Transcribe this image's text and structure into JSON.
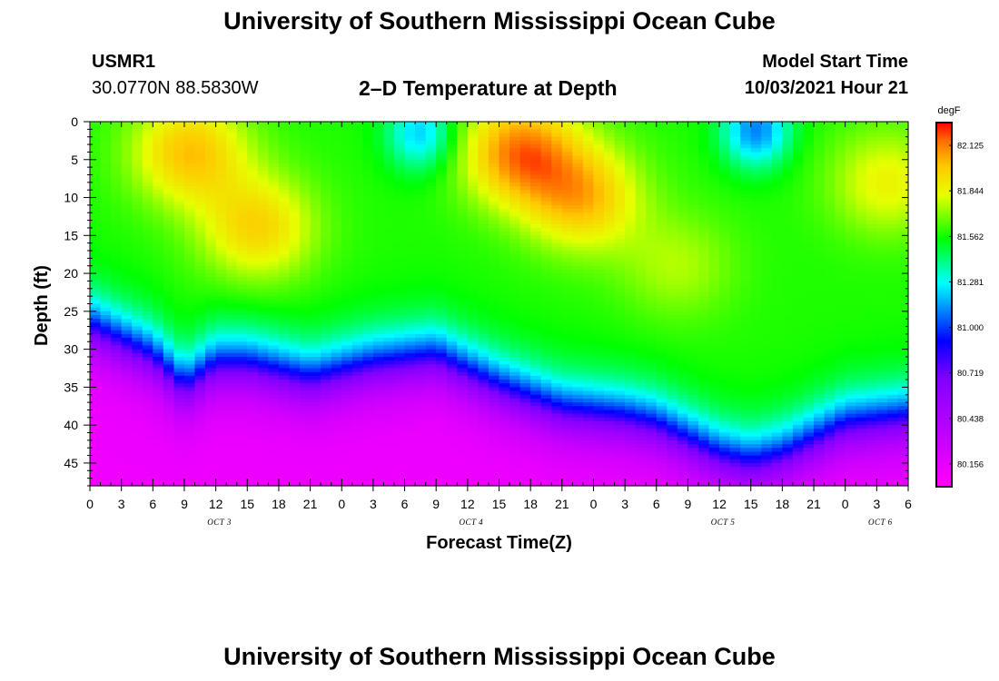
{
  "header": {
    "title": "University of Southern Mississippi Ocean Cube",
    "station_id": "USMR1",
    "coords": "30.0770N  88.5830W",
    "chart_title": "2–D Temperature at Depth",
    "start_label": "Model Start Time",
    "start_value": "10/03/2021 Hour 21"
  },
  "footer": {
    "title": "University of Southern Mississippi Ocean Cube"
  },
  "chart_data": {
    "type": "heatmap",
    "title": "2–D Temperature at Depth",
    "xlabel": "Forecast Time(Z)",
    "ylabel": "Depth (ft)",
    "x_unit": "hours since Oct 3 00Z",
    "x_range": [
      0,
      78
    ],
    "x_tick_step_hours": 3,
    "x_tick_labels": [
      "0",
      "3",
      "6",
      "9",
      "12",
      "15",
      "18",
      "21",
      "0",
      "3",
      "6",
      "9",
      "12",
      "15",
      "18",
      "21",
      "0",
      "3",
      "6",
      "9",
      "12",
      "15",
      "18",
      "21",
      "0",
      "3",
      "6"
    ],
    "date_labels": [
      {
        "text": "OCT 3",
        "hour": 12
      },
      {
        "text": "OCT 4",
        "hour": 36
      },
      {
        "text": "OCT 5",
        "hour": 60
      },
      {
        "text": "OCT 6",
        "hour": 75
      }
    ],
    "y_range": [
      0,
      48
    ],
    "y_ticks": [
      0,
      5,
      10,
      15,
      20,
      25,
      30,
      35,
      40,
      45
    ],
    "colorbar": {
      "unit": "degF",
      "min": 80.016,
      "max": 82.266,
      "labels": [
        "82.125",
        "81.844",
        "81.562",
        "81.281",
        "81.000",
        "80.719",
        "80.438",
        "80.156"
      ]
    },
    "thermocline_depth_ft": [
      {
        "hour": 0,
        "depth": 27
      },
      {
        "hour": 6,
        "depth": 31
      },
      {
        "hour": 9,
        "depth": 35
      },
      {
        "hour": 12,
        "depth": 32
      },
      {
        "hour": 15,
        "depth": 32
      },
      {
        "hour": 21,
        "depth": 34
      },
      {
        "hour": 27,
        "depth": 32
      },
      {
        "hour": 33,
        "depth": 31
      },
      {
        "hour": 39,
        "depth": 35
      },
      {
        "hour": 45,
        "depth": 38
      },
      {
        "hour": 51,
        "depth": 39
      },
      {
        "hour": 54,
        "depth": 40
      },
      {
        "hour": 57,
        "depth": 42
      },
      {
        "hour": 60,
        "depth": 44
      },
      {
        "hour": 63,
        "depth": 45
      },
      {
        "hour": 66,
        "depth": 44
      },
      {
        "hour": 69,
        "depth": 42
      },
      {
        "hour": 72,
        "depth": 40
      },
      {
        "hour": 78,
        "depth": 39
      }
    ],
    "warm_core_centers": [
      {
        "hour": 9.5,
        "depth": 4,
        "temp": 82.0
      },
      {
        "hour": 16,
        "depth": 14,
        "temp": 81.95
      },
      {
        "hour": 41,
        "depth": 4,
        "temp": 82.12
      },
      {
        "hour": 47,
        "depth": 10,
        "temp": 82.0
      },
      {
        "hour": 56,
        "depth": 19,
        "temp": 81.75
      },
      {
        "hour": 76,
        "depth": 8,
        "temp": 81.85
      }
    ],
    "cool_core_centers": [
      {
        "hour": 31.5,
        "depth": 1.5,
        "temp": 81.2
      },
      {
        "hour": 63.5,
        "depth": 1,
        "temp": 81.1
      }
    ],
    "deep_temperature": 80.1
  }
}
